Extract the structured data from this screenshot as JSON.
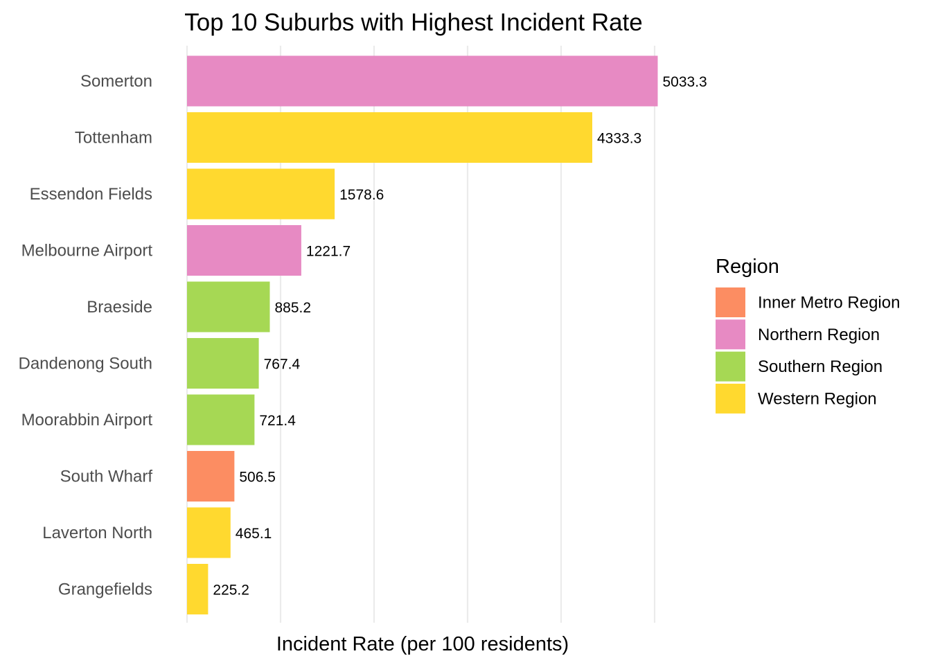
{
  "chart_data": {
    "type": "bar",
    "orientation": "horizontal",
    "title": "Top 10 Suburbs with Highest Incident Rate",
    "xlabel": "Incident Rate (per 100 residents)",
    "ylabel": "",
    "xlim": [
      0,
      5033.3
    ],
    "grid": true,
    "show_tick_labels": false,
    "categories": [
      "Somerton",
      "Tottenham",
      "Essendon Fields",
      "Melbourne Airport",
      "Braeside",
      "Dandenong South",
      "Moorabbin Airport",
      "South Wharf",
      "Laverton North",
      "Grangefields"
    ],
    "values": [
      5033.3,
      4333.3,
      1578.6,
      1221.7,
      885.2,
      767.4,
      721.4,
      506.5,
      465.1,
      225.2
    ],
    "value_labels": [
      "5033.3",
      "4333.3",
      "1578.6",
      "1221.7",
      "885.2",
      "767.4",
      "721.4",
      "506.5",
      "465.1",
      "225.2"
    ],
    "regions": [
      "Northern Region",
      "Western Region",
      "Western Region",
      "Northern Region",
      "Southern Region",
      "Southern Region",
      "Southern Region",
      "Inner Metro Region",
      "Western Region",
      "Western Region"
    ],
    "legend": {
      "title": "Region",
      "position": "right",
      "entries": [
        {
          "name": "Inner Metro Region",
          "color": "#FC8D62"
        },
        {
          "name": "Northern Region",
          "color": "#E78AC3"
        },
        {
          "name": "Southern Region",
          "color": "#A6D854"
        },
        {
          "name": "Western Region",
          "color": "#FFD92F"
        }
      ]
    }
  }
}
